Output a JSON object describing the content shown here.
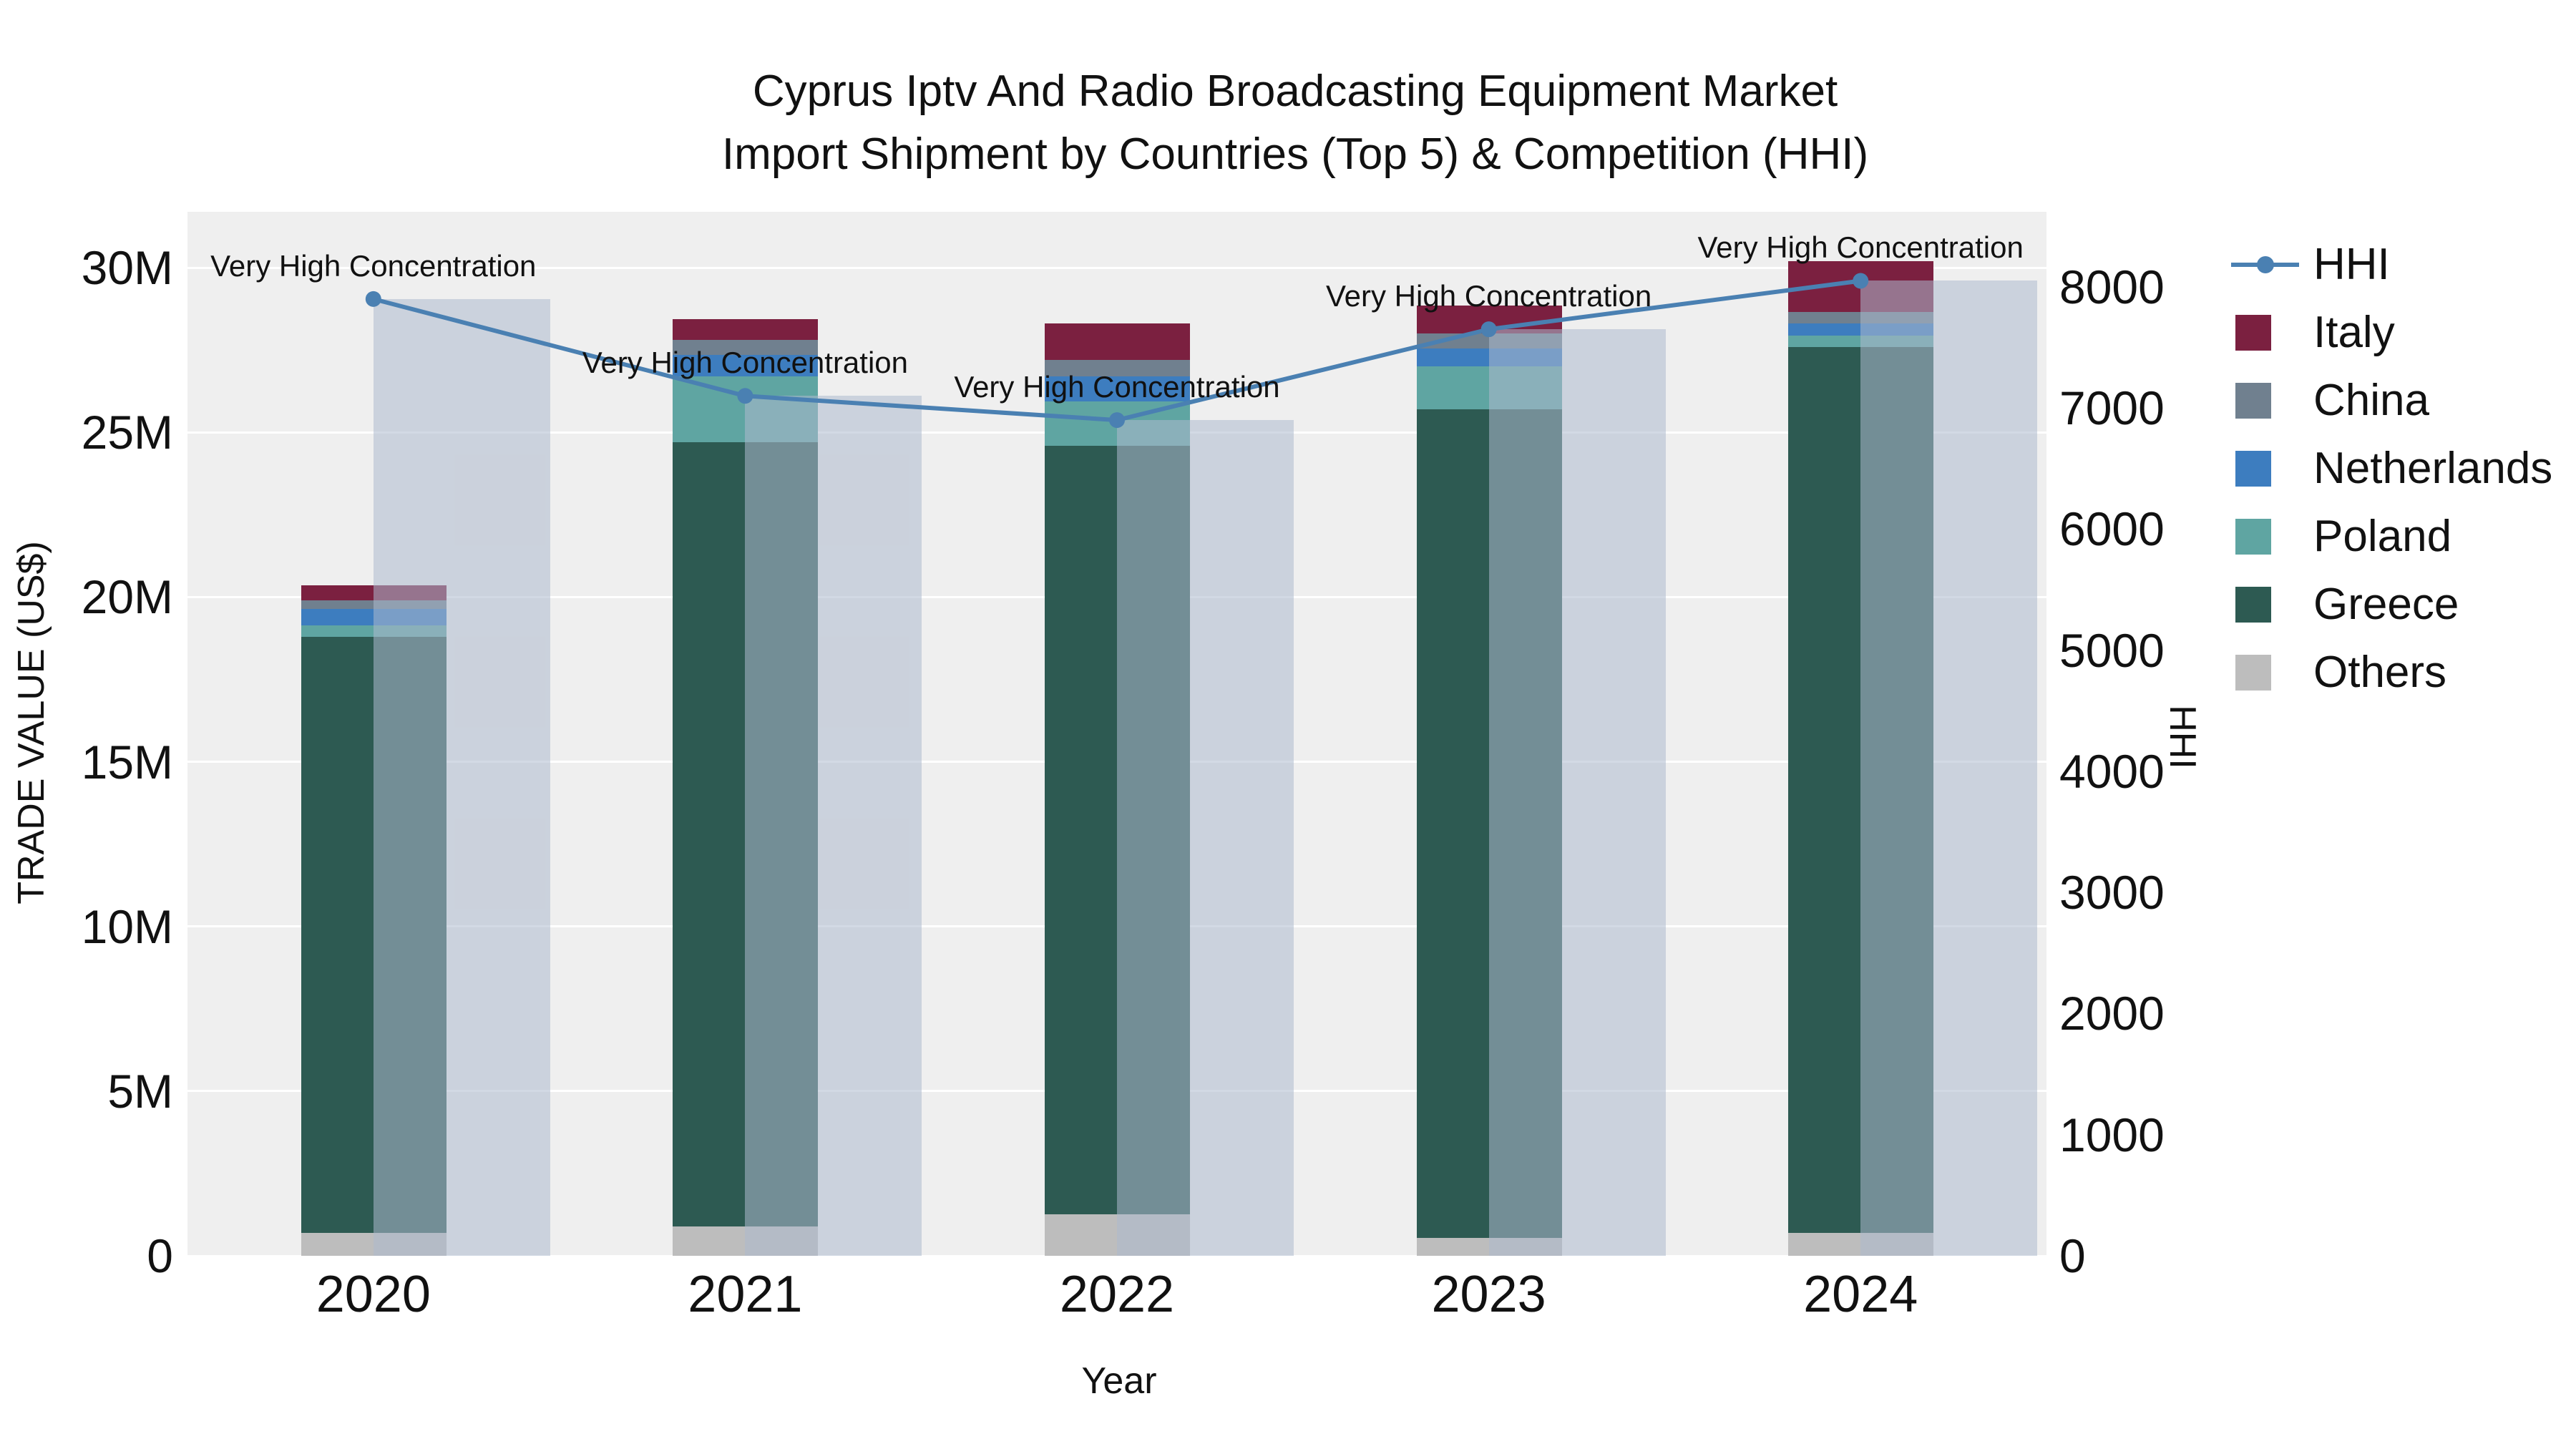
{
  "chart_data": {
    "type": "bar",
    "variant": "stacked-bars-with-line-overlay",
    "title": "Cyprus Iptv And Radio Broadcasting Equipment Market",
    "subtitle": "Import Shipment by Countries (Top 5) & Competition (HHI)",
    "xlabel": "Year",
    "ylabel_left": "TRADE VALUE (US$)",
    "ylabel_right": "HHI",
    "categories": [
      "2020",
      "2021",
      "2022",
      "2023",
      "2024"
    ],
    "value_unit": "million US$",
    "series": [
      {
        "name": "Italy",
        "color": "#7b2040",
        "values": [
          0.45,
          0.65,
          1.1,
          0.85,
          1.55
        ]
      },
      {
        "name": "China",
        "color": "#70808f",
        "values": [
          0.25,
          0.45,
          0.5,
          0.45,
          0.35
        ]
      },
      {
        "name": "Netherlands",
        "color": "#3d7dbf",
        "values": [
          0.5,
          0.65,
          0.75,
          0.55,
          0.35
        ]
      },
      {
        "name": "Poland",
        "color": "#5fa5a2",
        "values": [
          0.35,
          2.0,
          1.35,
          1.3,
          0.35
        ]
      },
      {
        "name": "Greece",
        "color": "#2d5a52",
        "values": [
          18.1,
          23.8,
          23.35,
          25.15,
          26.9
        ]
      },
      {
        "name": "Others",
        "color": "#bdbdbd",
        "values": [
          0.7,
          0.9,
          1.25,
          0.55,
          0.7
        ]
      }
    ],
    "stack_order_bottom_to_top": [
      "Others",
      "Greece",
      "Poland",
      "Netherlands",
      "China",
      "Italy"
    ],
    "hhi": {
      "name": "HHI",
      "values": [
        7900,
        7100,
        6900,
        7650,
        8050
      ],
      "line_color": "#4a80b2",
      "bar_color": "rgba(173,185,205,0.55)",
      "annotation_text": "Very High Concentration"
    },
    "ylim_left": [
      0,
      31.7
    ],
    "ylim_right": [
      0,
      8620
    ],
    "left_ticks": {
      "values": [
        0,
        5,
        10,
        15,
        20,
        25,
        30
      ],
      "labels": [
        "0",
        "5M",
        "10M",
        "15M",
        "20M",
        "25M",
        "30M"
      ]
    },
    "right_ticks": {
      "values": [
        0,
        1000,
        2000,
        3000,
        4000,
        5000,
        6000,
        7000,
        8000
      ],
      "labels": [
        "0",
        "1000",
        "2000",
        "3000",
        "4000",
        "5000",
        "6000",
        "7000",
        "8000"
      ]
    },
    "legend_order": [
      "HHI",
      "Italy",
      "China",
      "Netherlands",
      "Poland",
      "Greece",
      "Others"
    ]
  }
}
